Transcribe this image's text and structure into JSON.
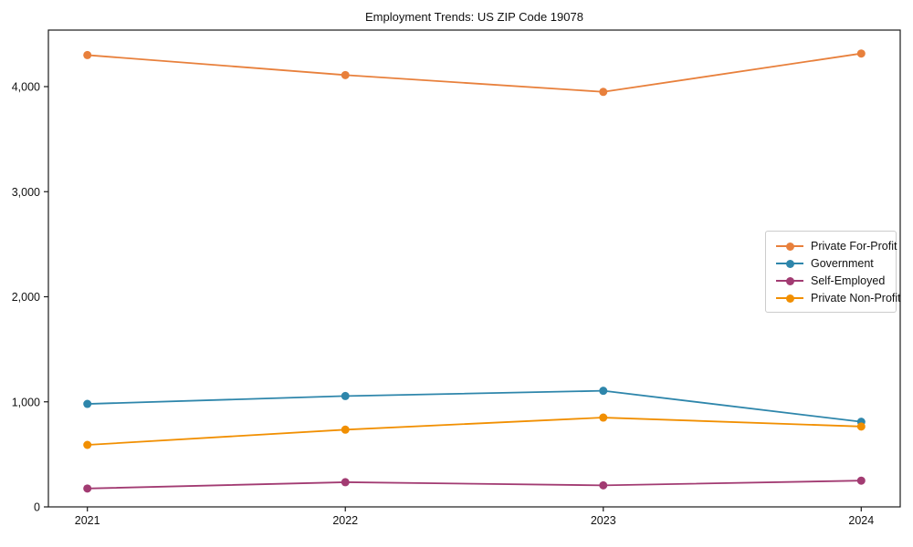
{
  "page": {
    "background": "#ffffff",
    "text_color": "#111111",
    "axis_color": "#1a1a1a",
    "legend_border_color": "#cccccc"
  },
  "chart_data": {
    "type": "line",
    "title": "Employment Trends: US ZIP Code 19078",
    "xlabel": "",
    "ylabel": "",
    "categories": [
      "2021",
      "2022",
      "2023",
      "2024"
    ],
    "series": [
      {
        "name": "Private For-Profit",
        "color": "#E8803C",
        "values": [
          4300,
          4110,
          3950,
          4315
        ]
      },
      {
        "name": "Government",
        "color": "#2E86AB",
        "values": [
          980,
          1055,
          1105,
          810
        ]
      },
      {
        "name": "Self-Employed",
        "color": "#A23B72",
        "values": [
          175,
          235,
          205,
          250
        ]
      },
      {
        "name": "Private Non-Profit",
        "color": "#F18F01",
        "values": [
          590,
          735,
          850,
          765
        ]
      }
    ],
    "ylim": [
      0,
      4538
    ],
    "yticks": [
      0,
      1000,
      2000,
      3000,
      4000
    ],
    "ytick_labels": [
      "0",
      "1,000",
      "2,000",
      "3,000",
      "4,000"
    ],
    "grid": false,
    "legend_position": "center-right",
    "marker": "circle"
  }
}
